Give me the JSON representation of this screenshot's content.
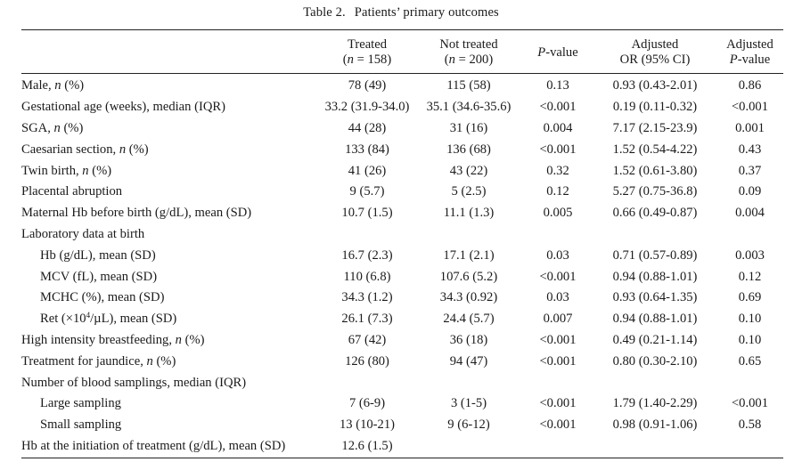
{
  "caption": {
    "number": "Table 2.",
    "title": "Patients’ primary outcomes"
  },
  "header": {
    "treated": {
      "line1": "Treated",
      "n_label": "n",
      "n_value": "= 158"
    },
    "not_treated": {
      "line1": "Not treated",
      "n_label": "n",
      "n_value": "= 200"
    },
    "p_value": {
      "italic": "P",
      "rest": "-value"
    },
    "adj_or": {
      "line1": "Adjusted",
      "line2": "OR (95% CI)"
    },
    "adj_p": {
      "line1": "Adjusted",
      "italic": "P",
      "rest": "-value"
    }
  },
  "rows": [
    {
      "label": "Male, ",
      "label_italic": "n",
      "label_suffix": " (%)",
      "treated": "78 (49)",
      "not_treated": "115 (58)",
      "p": "0.13",
      "or": "0.93 (0.43-2.01)",
      "adj_p": "0.86"
    },
    {
      "label": "Gestational age (weeks), median (IQR)",
      "treated": "33.2 (31.9-34.0)",
      "not_treated": "35.1 (34.6-35.6)",
      "p": "<0.001",
      "or": "0.19 (0.11-0.32)",
      "adj_p": "<0.001"
    },
    {
      "label": "SGA, ",
      "label_italic": "n",
      "label_suffix": " (%)",
      "treated": "44 (28)",
      "not_treated": "31 (16)",
      "p": "0.004",
      "or": "7.17 (2.15-23.9)",
      "adj_p": "0.001"
    },
    {
      "label": "Caesarian section, ",
      "label_italic": "n",
      "label_suffix": " (%)",
      "treated": "133 (84)",
      "not_treated": "136 (68)",
      "p": "<0.001",
      "or": "1.52 (0.54-4.22)",
      "adj_p": "0.43"
    },
    {
      "label": "Twin birth, ",
      "label_italic": "n",
      "label_suffix": " (%)",
      "treated": "41 (26)",
      "not_treated": "43 (22)",
      "p": "0.32",
      "or": "1.52 (0.61-3.80)",
      "adj_p": "0.37"
    },
    {
      "label": "Placental abruption",
      "treated": "9 (5.7)",
      "not_treated": "5 (2.5)",
      "p": "0.12",
      "or": "5.27 (0.75-36.8)",
      "adj_p": "0.09"
    },
    {
      "label": "Maternal Hb before birth (g/dL), mean (SD)",
      "treated": "10.7 (1.5)",
      "not_treated": "11.1 (1.3)",
      "p": "0.005",
      "or": "0.66 (0.49-0.87)",
      "adj_p": "0.004"
    },
    {
      "label": "Laboratory data at birth",
      "treated": "",
      "not_treated": "",
      "p": "",
      "or": "",
      "adj_p": ""
    },
    {
      "label": "Hb (g/dL), mean (SD)",
      "sub": true,
      "treated": "16.7 (2.3)",
      "not_treated": "17.1 (2.1)",
      "p": "0.03",
      "or": "0.71 (0.57-0.89)",
      "adj_p": "0.003"
    },
    {
      "label": "MCV (fL), mean (SD)",
      "sub": true,
      "treated": "110 (6.8)",
      "not_treated": "107.6 (5.2)",
      "p": "<0.001",
      "or": "0.94 (0.88-1.01)",
      "adj_p": "0.12"
    },
    {
      "label": "MCHC (%), mean (SD)",
      "sub": true,
      "treated": "34.3 (1.2)",
      "not_treated": "34.3 (0.92)",
      "p": "0.03",
      "or": "0.93 (0.64-1.35)",
      "adj_p": "0.69"
    },
    {
      "label": "Ret (×10",
      "label_sup": "4",
      "label_suffix": "/µL), mean (SD)",
      "sub": true,
      "treated": "26.1 (7.3)",
      "not_treated": "24.4 (5.7)",
      "p": "0.007",
      "or": "0.94 (0.88-1.01)",
      "adj_p": "0.10"
    },
    {
      "label": "High intensity breastfeeding, ",
      "label_italic": "n",
      "label_suffix": " (%)",
      "treated": "67 (42)",
      "not_treated": "36 (18)",
      "p": "<0.001",
      "or": "0.49 (0.21-1.14)",
      "adj_p": "0.10"
    },
    {
      "label": "Treatment for jaundice, ",
      "label_italic": "n",
      "label_suffix": " (%)",
      "treated": "126 (80)",
      "not_treated": "94 (47)",
      "p": "<0.001",
      "or": "0.80 (0.30-2.10)",
      "adj_p": "0.65"
    },
    {
      "label": "Number of blood samplings, median (IQR)",
      "treated": "",
      "not_treated": "",
      "p": "",
      "or": "",
      "adj_p": ""
    },
    {
      "label": "Large sampling",
      "sub": true,
      "treated": "7 (6-9)",
      "not_treated": "3 (1-5)",
      "p": "<0.001",
      "or": "1.79 (1.40-2.29)",
      "adj_p": "<0.001"
    },
    {
      "label": "Small sampling",
      "sub": true,
      "treated": "13 (10-21)",
      "not_treated": "9 (6-12)",
      "p": "<0.001",
      "or": "0.98 (0.91-1.06)",
      "adj_p": "0.58"
    },
    {
      "label": "Hb at the initiation of treatment (g/dL), mean (SD)",
      "treated": "12.6 (1.5)",
      "not_treated": "",
      "p": "",
      "or": "",
      "adj_p": ""
    }
  ]
}
